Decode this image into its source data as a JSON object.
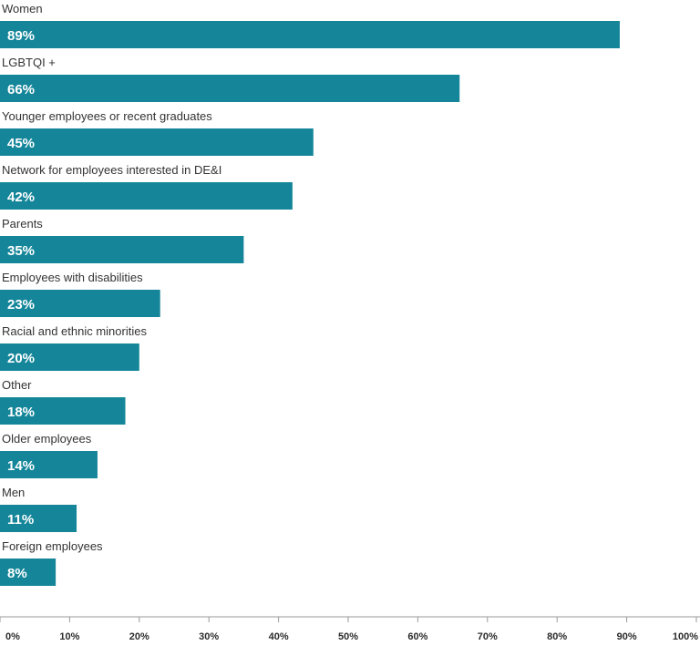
{
  "chart_data": {
    "type": "bar",
    "orientation": "horizontal",
    "categories": [
      "Women",
      "LGBTQI +",
      "Younger employees or recent graduates",
      "Network for employees interested in DE&I",
      "Parents",
      "Employees with disabilities",
      "Racial and ethnic minorities",
      "Other",
      "Older employees",
      "Men",
      "Foreign employees"
    ],
    "values": [
      89,
      66,
      45,
      42,
      35,
      23,
      20,
      18,
      14,
      11,
      8
    ],
    "value_labels": [
      "89%",
      "66%",
      "45%",
      "42%",
      "35%",
      "23%",
      "20%",
      "18%",
      "14%",
      "11%",
      "8%"
    ],
    "xlim": [
      0,
      100
    ],
    "x_ticks": [
      0,
      10,
      20,
      30,
      40,
      50,
      60,
      70,
      80,
      90,
      100
    ],
    "x_tick_labels": [
      "0%",
      "10%",
      "20%",
      "30%",
      "40%",
      "50%",
      "60%",
      "70%",
      "80%",
      "90%",
      "100%"
    ],
    "bar_color": "#15869a",
    "grid": false,
    "title": "",
    "xlabel": "",
    "ylabel": ""
  }
}
